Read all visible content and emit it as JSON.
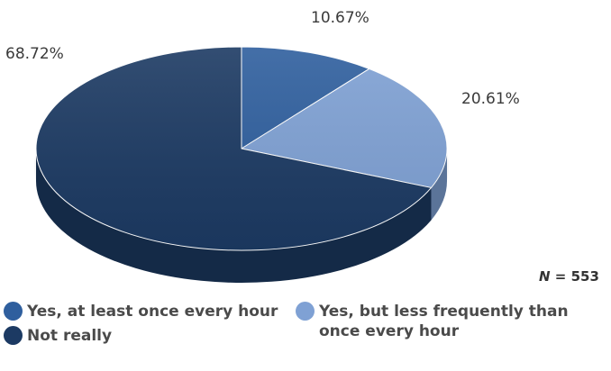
{
  "chart_data": {
    "type": "pie",
    "style": "3d",
    "n_label": "N",
    "n_value": "553",
    "slices": [
      {
        "name": "Yes, at least once every hour",
        "value": 10.67,
        "label": "10.67%",
        "color": "#2f5f9e"
      },
      {
        "name": "Yes, but less frequently than once every hour",
        "value": 20.61,
        "label": "20.61%",
        "color": "#7fa1d4"
      },
      {
        "name": "Not really",
        "value": 68.72,
        "label": "68.72%",
        "color": "#1c3a63"
      }
    ],
    "legend_placement": "bottom"
  }
}
